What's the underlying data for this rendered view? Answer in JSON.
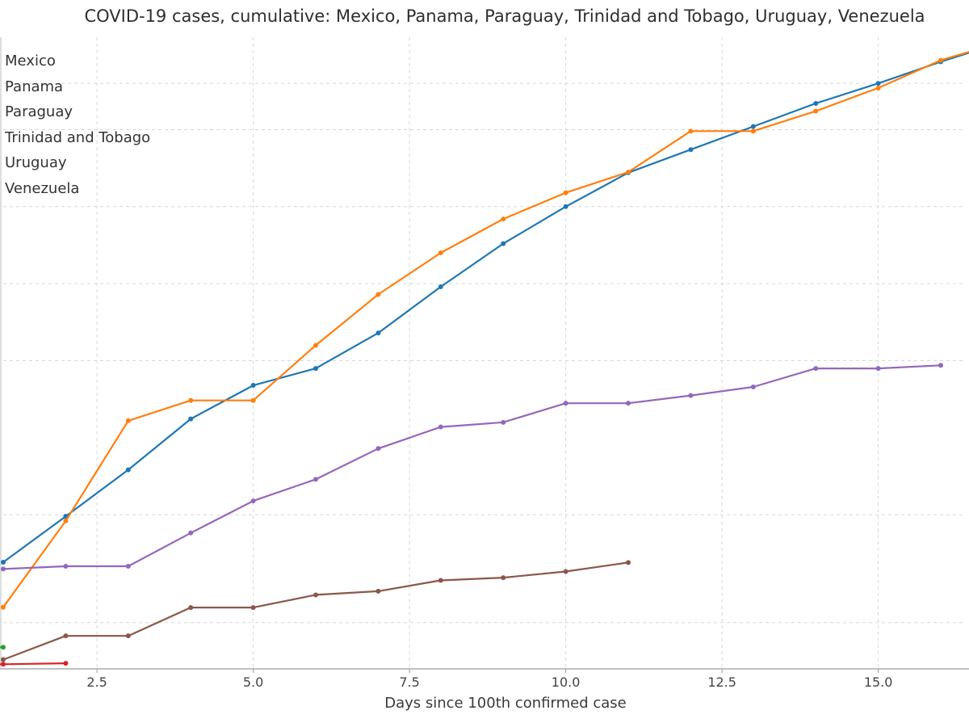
{
  "chart_data": {
    "type": "line",
    "title": "COVID-19 cases, cumulative: Mexico, Panama, Paraguay, Trinidad and Tobago, Uruguay, Venezuela",
    "xlabel": "Days since 100th confirmed case",
    "ylabel": "",
    "xlim": [
      1,
      16.4
    ],
    "ylim": [
      0,
      2050
    ],
    "x_ticks": [
      2.5,
      5.0,
      7.5,
      10.0,
      12.5,
      15.0
    ],
    "x_tick_labels": [
      "2.5",
      "5.0",
      "7.5",
      "10.0",
      "12.5",
      "15.0"
    ],
    "grid": true,
    "legend_position": "top-left",
    "series": [
      {
        "name": "Mexico",
        "color": "#1f77b4",
        "x": [
          1,
          2,
          3,
          4,
          5,
          6,
          7,
          8,
          9,
          10,
          11,
          12,
          13,
          14,
          15,
          16,
          17
        ],
        "y": [
          346,
          495,
          646,
          811,
          920,
          975,
          1090,
          1240,
          1380,
          1500,
          1610,
          1685,
          1760,
          1835,
          1900,
          1970,
          2035
        ]
      },
      {
        "name": "Panama",
        "color": "#ff7f0e",
        "x": [
          1,
          2,
          3,
          4,
          5,
          6,
          7,
          8,
          9,
          10,
          11,
          12,
          13,
          14,
          15,
          16,
          17
        ],
        "y": [
          200,
          480,
          805,
          871,
          871,
          1050,
          1215,
          1350,
          1460,
          1545,
          1612,
          1745,
          1745,
          1810,
          1885,
          1975,
          2035
        ]
      },
      {
        "name": "Paraguay",
        "color": "#2ca02c",
        "x": [
          0,
          1
        ],
        "y": [
          70,
          70
        ]
      },
      {
        "name": "Trinidad and Tobago",
        "color": "#d62728",
        "x": [
          0,
          1,
          2
        ],
        "y": [
          15,
          15,
          18
        ]
      },
      {
        "name": "Uruguay",
        "color": "#9467bd",
        "x": [
          1,
          2,
          3,
          4,
          5,
          6,
          7,
          8,
          9,
          10,
          11,
          12,
          13,
          14,
          15,
          16
        ],
        "y": [
          324,
          333,
          333,
          441,
          545,
          615,
          715,
          785,
          800,
          862,
          862,
          887,
          915,
          975,
          975,
          985
        ]
      },
      {
        "name": "Venezuela",
        "color": "#8c564b",
        "x": [
          1,
          2,
          3,
          4,
          5,
          6,
          7,
          8,
          9,
          10,
          11
        ],
        "y": [
          30,
          107,
          107,
          199,
          199,
          240,
          252,
          287,
          296,
          316,
          345
        ]
      }
    ]
  }
}
